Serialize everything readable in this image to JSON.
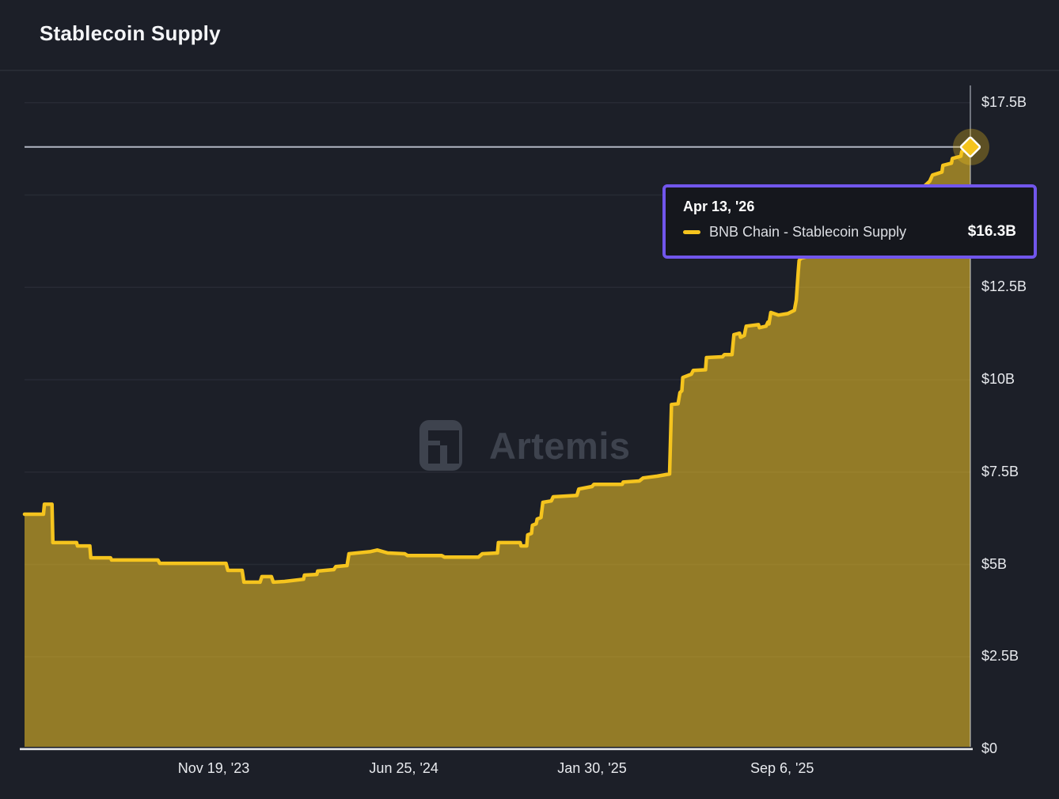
{
  "header": {
    "title": "Stablecoin Supply"
  },
  "watermark": {
    "text": "Artemis",
    "logo": "artemis-pixel-a",
    "color": "#3e434e"
  },
  "tooltip": {
    "date": "Apr 13, '26",
    "series_label": "BNB Chain - Stablecoin Supply",
    "value": "$16.3B",
    "border_color": "#7156ec",
    "swatch_color": "#f5c41e"
  },
  "colors": {
    "background": "#1c1f28",
    "line": "#f5c41e",
    "area_fill": "rgba(245,199,38,0.55)",
    "grid": "#272a34",
    "crosshair": "rgba(186,191,203,0.95)",
    "axis_line": "#e8e9ec",
    "marker_fill": "#f5c41e",
    "marker_stroke": "#ffffff",
    "marker_glow": "rgba(245,197,30,0.3)"
  },
  "chart_data": {
    "type": "area",
    "title": "Stablecoin Supply",
    "series_name": "BNB Chain - Stablecoin Supply",
    "unit": "USD billions",
    "ylim": [
      0,
      17.9
    ],
    "grid_values": [
      17.5,
      15,
      12.5,
      10,
      7.5,
      5,
      2.5
    ],
    "y_ticks": [
      {
        "label": "$17.5B",
        "value": 17.5
      },
      {
        "label": "$12.5B",
        "value": 12.5
      },
      {
        "label": "$10B",
        "value": 10
      },
      {
        "label": "$7.5B",
        "value": 7.5
      },
      {
        "label": "$5B",
        "value": 5
      },
      {
        "label": "$2.5B",
        "value": 2.5
      },
      {
        "label": "$0",
        "value": 0
      }
    ],
    "x_ticks": [
      {
        "label": "Nov 19, '23",
        "f": 0.2
      },
      {
        "label": "Jun 25, '24",
        "f": 0.401
      },
      {
        "label": "Jan 30, '25",
        "f": 0.6
      },
      {
        "label": "Sep 6, '25",
        "f": 0.801
      }
    ],
    "x_range_note": "x encoded as fraction 0-1 of plot width, ~Apr '23 to Apr 13 '26",
    "points": [
      [
        0.0,
        6.36
      ],
      [
        0.02,
        6.36
      ],
      [
        0.021,
        6.63
      ],
      [
        0.029,
        6.63
      ],
      [
        0.03,
        5.59
      ],
      [
        0.055,
        5.59
      ],
      [
        0.056,
        5.5
      ],
      [
        0.069,
        5.5
      ],
      [
        0.07,
        5.18
      ],
      [
        0.091,
        5.18
      ],
      [
        0.092,
        5.12
      ],
      [
        0.141,
        5.12
      ],
      [
        0.143,
        5.03
      ],
      [
        0.213,
        5.03
      ],
      [
        0.215,
        4.84
      ],
      [
        0.23,
        4.84
      ],
      [
        0.232,
        4.52
      ],
      [
        0.249,
        4.52
      ],
      [
        0.251,
        4.67
      ],
      [
        0.261,
        4.67
      ],
      [
        0.263,
        4.52
      ],
      [
        0.275,
        4.54
      ],
      [
        0.295,
        4.6
      ],
      [
        0.296,
        4.71
      ],
      [
        0.309,
        4.73
      ],
      [
        0.31,
        4.82
      ],
      [
        0.327,
        4.86
      ],
      [
        0.329,
        4.94
      ],
      [
        0.341,
        4.97
      ],
      [
        0.343,
        5.29
      ],
      [
        0.366,
        5.35
      ],
      [
        0.373,
        5.39
      ],
      [
        0.384,
        5.31
      ],
      [
        0.402,
        5.29
      ],
      [
        0.405,
        5.24
      ],
      [
        0.441,
        5.24
      ],
      [
        0.444,
        5.2
      ],
      [
        0.48,
        5.2
      ],
      [
        0.484,
        5.29
      ],
      [
        0.5,
        5.31
      ],
      [
        0.501,
        5.59
      ],
      [
        0.524,
        5.59
      ],
      [
        0.525,
        5.5
      ],
      [
        0.531,
        5.5
      ],
      [
        0.532,
        5.8
      ],
      [
        0.536,
        5.84
      ],
      [
        0.537,
        6.06
      ],
      [
        0.541,
        6.1
      ],
      [
        0.542,
        6.23
      ],
      [
        0.546,
        6.27
      ],
      [
        0.548,
        6.68
      ],
      [
        0.557,
        6.72
      ],
      [
        0.559,
        6.83
      ],
      [
        0.584,
        6.87
      ],
      [
        0.586,
        7.04
      ],
      [
        0.6,
        7.11
      ],
      [
        0.602,
        7.17
      ],
      [
        0.632,
        7.17
      ],
      [
        0.633,
        7.23
      ],
      [
        0.65,
        7.26
      ],
      [
        0.654,
        7.34
      ],
      [
        0.669,
        7.39
      ],
      [
        0.682,
        7.45
      ],
      [
        0.684,
        9.33
      ],
      [
        0.691,
        9.35
      ],
      [
        0.693,
        9.65
      ],
      [
        0.695,
        9.7
      ],
      [
        0.696,
        10.06
      ],
      [
        0.705,
        10.15
      ],
      [
        0.707,
        10.25
      ],
      [
        0.72,
        10.27
      ],
      [
        0.721,
        10.6
      ],
      [
        0.738,
        10.62
      ],
      [
        0.74,
        10.68
      ],
      [
        0.748,
        10.68
      ],
      [
        0.75,
        11.22
      ],
      [
        0.756,
        11.26
      ],
      [
        0.757,
        11.15
      ],
      [
        0.761,
        11.2
      ],
      [
        0.763,
        11.45
      ],
      [
        0.776,
        11.49
      ],
      [
        0.777,
        11.41
      ],
      [
        0.784,
        11.45
      ],
      [
        0.786,
        11.56
      ],
      [
        0.787,
        11.51
      ],
      [
        0.789,
        11.82
      ],
      [
        0.797,
        11.75
      ],
      [
        0.807,
        11.79
      ],
      [
        0.814,
        11.88
      ],
      [
        0.816,
        12.16
      ],
      [
        0.818,
        12.91
      ],
      [
        0.819,
        13.23
      ],
      [
        0.821,
        13.29
      ],
      [
        0.844,
        13.44
      ],
      [
        0.861,
        13.61
      ],
      [
        0.878,
        13.87
      ],
      [
        0.894,
        14.08
      ],
      [
        0.911,
        14.4
      ],
      [
        0.928,
        14.72
      ],
      [
        0.945,
        15.09
      ],
      [
        0.957,
        15.37
      ],
      [
        0.96,
        15.54
      ],
      [
        0.97,
        15.62
      ],
      [
        0.971,
        15.8
      ],
      [
        0.98,
        15.86
      ],
      [
        0.981,
        15.99
      ],
      [
        0.99,
        16.05
      ],
      [
        0.991,
        16.18
      ],
      [
        0.996,
        16.22
      ],
      [
        1.0,
        16.3
      ]
    ],
    "highlight": {
      "f": 1.0,
      "value": 16.3,
      "date": "Apr 13, '26",
      "value_label": "$16.3B"
    }
  }
}
